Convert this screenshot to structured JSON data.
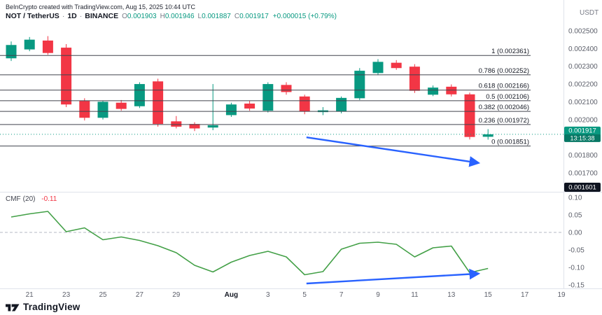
{
  "meta": {
    "attribution": "BeInCrypto created with TradingView.com, Aug 15, 2025 10:44 UTC",
    "watermark": "TradingView"
  },
  "header": {
    "symbol": "NOT / TetherUS",
    "separator": "·",
    "interval": "1D",
    "exchange": "BINANCE",
    "ohlc": {
      "o_label": "O",
      "o": "0.001903",
      "h_label": "H",
      "h": "0.001946",
      "l_label": "L",
      "l": "0.001887",
      "c_label": "C",
      "c": "0.001917",
      "change": "+0.000015 (+0.79%)"
    },
    "currency": "USDT"
  },
  "colors": {
    "up": "#089981",
    "down": "#f23645",
    "accent_blue": "#2962ff",
    "cmf_line": "#43a047",
    "fib_line": "#40434d",
    "fib_label": "#131722",
    "axis_text": "#5d606b",
    "text_dark": "#131722",
    "separator": "#e0e3eb",
    "badge_black_bg": "#0f1420",
    "value_negative": "#f23645"
  },
  "chart_data": [
    {
      "type": "candlestick",
      "title": "NOT / TetherUS · 1D · BINANCE",
      "candles": [
        {
          "d": "Jul 20",
          "o": 0.002345,
          "h": 0.00244,
          "l": 0.00233,
          "c": 0.00242
        },
        {
          "d": "Jul 21",
          "o": 0.002395,
          "h": 0.002465,
          "l": 0.002385,
          "c": 0.00245
        },
        {
          "d": "Jul 22",
          "o": 0.002445,
          "h": 0.00247,
          "l": 0.002365,
          "c": 0.002375
        },
        {
          "d": "Jul 23",
          "o": 0.002405,
          "h": 0.002425,
          "l": 0.00207,
          "c": 0.002085
        },
        {
          "d": "Jul 24",
          "o": 0.002105,
          "h": 0.00212,
          "l": 0.001995,
          "c": 0.00201
        },
        {
          "d": "Jul 25",
          "o": 0.00201,
          "h": 0.002105,
          "l": 0.002,
          "c": 0.0021
        },
        {
          "d": "Jul 26",
          "o": 0.002095,
          "h": 0.00211,
          "l": 0.00205,
          "c": 0.00206
        },
        {
          "d": "Jul 27",
          "o": 0.002075,
          "h": 0.00221,
          "l": 0.002065,
          "c": 0.0022
        },
        {
          "d": "Jul 28",
          "o": 0.002215,
          "h": 0.00223,
          "l": 0.00196,
          "c": 0.001975
        },
        {
          "d": "Jul 29",
          "o": 0.00199,
          "h": 0.00202,
          "l": 0.00195,
          "c": 0.00196
        },
        {
          "d": "Jul 30",
          "o": 0.001975,
          "h": 0.001985,
          "l": 0.001935,
          "c": 0.00195
        },
        {
          "d": "Jul 31",
          "o": 0.001955,
          "h": 0.0022,
          "l": 0.00194,
          "c": 0.001968
        },
        {
          "d": "Aug 1",
          "o": 0.002025,
          "h": 0.002095,
          "l": 0.002015,
          "c": 0.002085
        },
        {
          "d": "Aug 2",
          "o": 0.00209,
          "h": 0.002105,
          "l": 0.00205,
          "c": 0.002062
        },
        {
          "d": "Aug 3",
          "o": 0.00205,
          "h": 0.00221,
          "l": 0.00204,
          "c": 0.0022
        },
        {
          "d": "Aug 4",
          "o": 0.002195,
          "h": 0.00221,
          "l": 0.00214,
          "c": 0.002155
        },
        {
          "d": "Aug 5",
          "o": 0.00213,
          "h": 0.00214,
          "l": 0.00203,
          "c": 0.002045
        },
        {
          "d": "Aug 6",
          "o": 0.002042,
          "h": 0.00207,
          "l": 0.002025,
          "c": 0.002052
        },
        {
          "d": "Aug 7",
          "o": 0.002045,
          "h": 0.00213,
          "l": 0.002035,
          "c": 0.002122
        },
        {
          "d": "Aug 8",
          "o": 0.00212,
          "h": 0.00229,
          "l": 0.00211,
          "c": 0.002275
        },
        {
          "d": "Aug 9",
          "o": 0.002262,
          "h": 0.00234,
          "l": 0.00225,
          "c": 0.002325
        },
        {
          "d": "Aug 10",
          "o": 0.00232,
          "h": 0.002335,
          "l": 0.00228,
          "c": 0.00229
        },
        {
          "d": "Aug 11",
          "o": 0.002298,
          "h": 0.002312,
          "l": 0.00215,
          "c": 0.002162
        },
        {
          "d": "Aug 12",
          "o": 0.00214,
          "h": 0.002192,
          "l": 0.002132,
          "c": 0.00218
        },
        {
          "d": "Aug 13",
          "o": 0.002185,
          "h": 0.002198,
          "l": 0.00213,
          "c": 0.002142
        },
        {
          "d": "Aug 14",
          "o": 0.002142,
          "h": 0.002152,
          "l": 0.001888,
          "c": 0.001902
        },
        {
          "d": "Aug 15",
          "o": 0.001903,
          "h": 0.001946,
          "l": 0.001887,
          "c": 0.001917
        }
      ],
      "fib_levels": [
        {
          "label": "1 (0.002361)",
          "value": 0.002361
        },
        {
          "label": "0.786 (0.002252)",
          "value": 0.002252
        },
        {
          "label": "0.618 (0.002166)",
          "value": 0.002166
        },
        {
          "label": "0.5 (0.002106)",
          "value": 0.002106
        },
        {
          "label": "0.382 (0.002046)",
          "value": 0.002046
        },
        {
          "label": "0.236 (0.001972)",
          "value": 0.001972
        },
        {
          "label": "0 (0.001851)",
          "value": 0.001851
        }
      ],
      "y_axis": {
        "range": [
          0.001601,
          0.002563
        ],
        "ticks": [
          {
            "label": "0.002500",
            "value": 0.0025
          },
          {
            "label": "0.002400",
            "value": 0.0024
          },
          {
            "label": "0.002300",
            "value": 0.0023
          },
          {
            "label": "0.002200",
            "value": 0.0022
          },
          {
            "label": "0.002100",
            "value": 0.0021
          },
          {
            "label": "0.002000",
            "value": 0.002
          },
          {
            "label": "0.001800",
            "value": 0.0018
          },
          {
            "label": "0.001700",
            "value": 0.0017
          }
        ],
        "bottom_badge": {
          "label": "0.001601",
          "value": 0.001601
        }
      },
      "x_ticks": [
        {
          "label": "21",
          "day": 1
        },
        {
          "label": "23",
          "day": 3
        },
        {
          "label": "25",
          "day": 5
        },
        {
          "label": "27",
          "day": 7
        },
        {
          "label": "29",
          "day": 9
        },
        {
          "label": "Aug",
          "day": 12,
          "bold": true
        },
        {
          "label": "3",
          "day": 14
        },
        {
          "label": "5",
          "day": 16
        },
        {
          "label": "7",
          "day": 18
        },
        {
          "label": "9",
          "day": 20
        },
        {
          "label": "11",
          "day": 22
        },
        {
          "label": "13",
          "day": 24
        },
        {
          "label": "15",
          "day": 26
        },
        {
          "label": "17",
          "day": 28
        },
        {
          "label": "19",
          "day": 30
        }
      ],
      "last_price": {
        "label": "0.001917",
        "value": 0.001917,
        "countdown": "13:15:38"
      },
      "arrow": {
        "from_day": 16.1,
        "from_price": 0.0019,
        "to_day": 25.4,
        "to_price": 0.001757
      }
    },
    {
      "type": "line",
      "name": "CMF",
      "params": "(20)",
      "value_label": "-0.11",
      "values": [
        0.044,
        0.053,
        0.06,
        0.002,
        0.013,
        -0.021,
        -0.013,
        -0.023,
        -0.038,
        -0.058,
        -0.094,
        -0.113,
        -0.085,
        -0.066,
        -0.054,
        -0.07,
        -0.121,
        -0.112,
        -0.048,
        -0.031,
        -0.028,
        -0.034,
        -0.07,
        -0.044,
        -0.039,
        -0.115,
        -0.103
      ],
      "y_ticks": [
        {
          "label": "0.10",
          "value": 0.1
        },
        {
          "label": "0.05",
          "value": 0.05
        },
        {
          "label": "0.00",
          "value": 0.0
        },
        {
          "label": "-0.05",
          "value": -0.05
        },
        {
          "label": "-0.10",
          "value": -0.1
        },
        {
          "label": "-0.15",
          "value": -0.15
        }
      ],
      "range": [
        -0.16,
        0.11
      ],
      "zero_line": 0,
      "arrow": {
        "from_day": 16.1,
        "from_value": -0.146,
        "to_day": 25.4,
        "to_value": -0.118
      }
    }
  ]
}
